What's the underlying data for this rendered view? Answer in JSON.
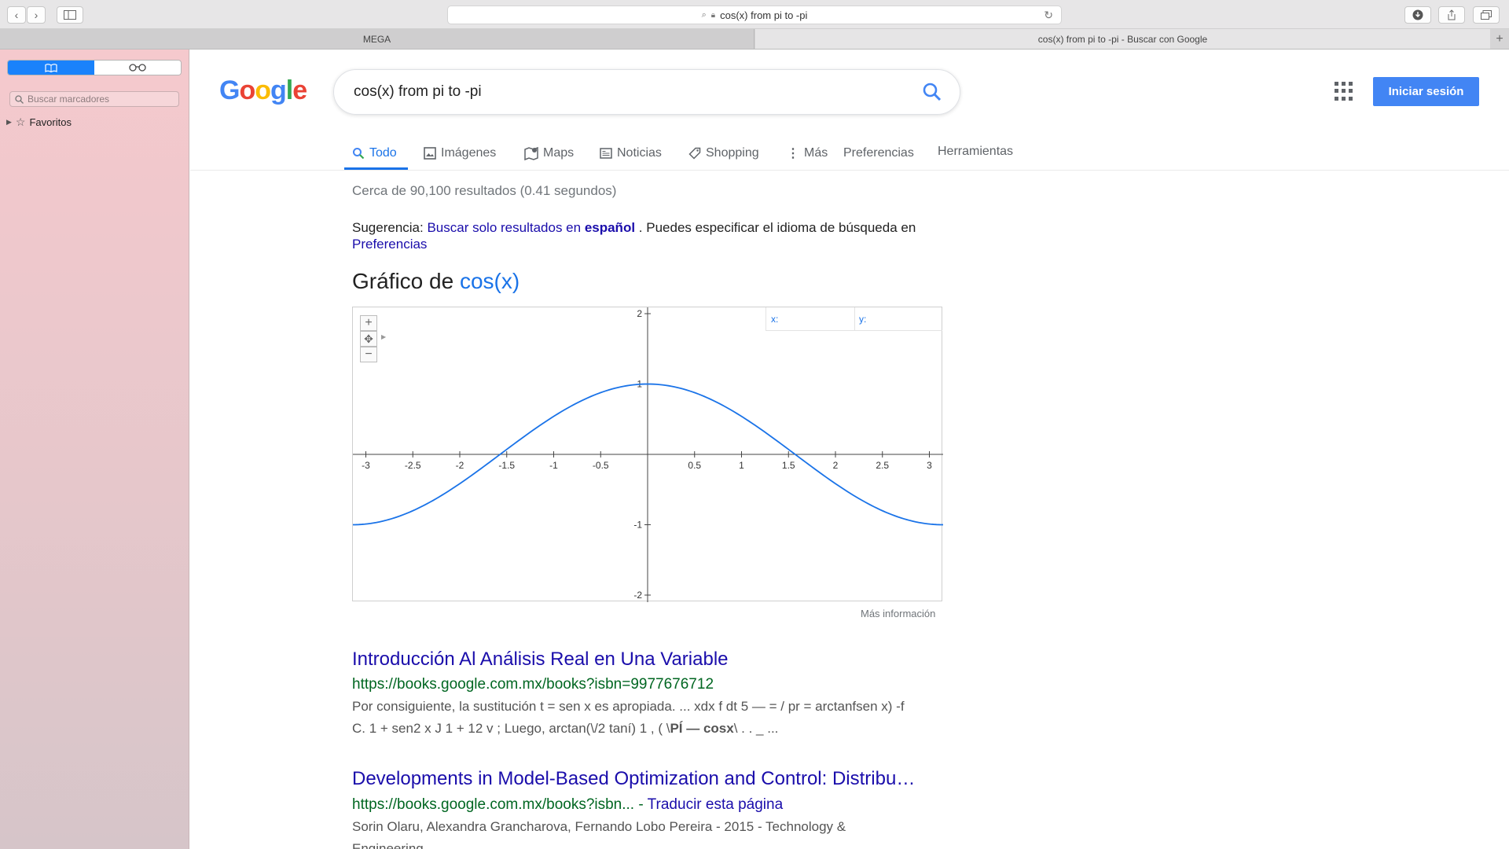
{
  "browser": {
    "url": "cos(x) from pi to -pi",
    "tabs": [
      {
        "label": "MEGA"
      },
      {
        "label": "cos(x) from pi to -pi - Buscar con Google"
      }
    ]
  },
  "sidebar": {
    "search_placeholder": "Buscar marcadores",
    "favorites_label": "Favoritos"
  },
  "google": {
    "logo_letters": [
      "G",
      "o",
      "o",
      "g",
      "l",
      "e"
    ],
    "search_query": "cos(x) from pi to -pi",
    "signin_label": "Iniciar sesión",
    "tabs": [
      "Todo",
      "Imágenes",
      "Maps",
      "Noticias",
      "Shopping",
      "Más",
      "Preferencias",
      "Herramientas"
    ],
    "stats": "Cerca de 90,100 resultados (0.41 segundos)",
    "suggestion": {
      "prefix": "Sugerencia:",
      "link_text": "Buscar solo resultados en",
      "link_bold": "español",
      "middle": ". Puedes especificar el idioma de búsqueda en",
      "pref_link": "Preferencias"
    },
    "graph_title_prefix": "Gráfico de",
    "graph_title_func": "cos(x)",
    "graph_readout": {
      "x_label": "x:",
      "y_label": "y:"
    },
    "more_info": "Más información",
    "results": [
      {
        "title": "Introducción Al Análisis Real en Una Variable",
        "url": "https://books.google.com.mx/books?isbn=9977676712",
        "translate": "",
        "snippet_1": "Por consiguiente, la sustitución t = sen x es apropiada. ... xdx f dt 5 — = / pr = arctanfsen x) -f",
        "snippet_2a": "C. 1 + sen2 x J 1 + 12 v ; Luego, arctan(\\/2 taní) 1 , ( \\",
        "snippet_2b": "PÍ — cosx",
        "snippet_2c": "\\ . . _ ..."
      },
      {
        "title": "Developments in Model-Based Optimization and Control: Distribu…",
        "url": "https://books.google.com.mx/books?isbn...",
        "translate": "Traducir esta página",
        "snippet_1": "Sorin Olaru, Alexandra Grancharova, Fernando Lobo Pereira - 2015 - Technology &",
        "snippet_2a": "Engineering",
        "snippet_2b": "",
        "snippet_2c": ""
      }
    ]
  },
  "chart_data": {
    "type": "line",
    "function": "cos(x)",
    "xlim": [
      -3.14159,
      3.14159
    ],
    "ylim": [
      -2,
      2
    ],
    "x_ticks": [
      -3,
      -2.5,
      -2,
      -1.5,
      -1,
      -0.5,
      0.5,
      1,
      1.5,
      2,
      2.5,
      3
    ],
    "y_ticks": [
      2,
      1,
      -1,
      -2
    ],
    "x_tick_labels": [
      "-3",
      "-2.5",
      "-2",
      "-1.5",
      "-1",
      "-0.5",
      "0.5",
      "1",
      "1.5",
      "2",
      "2.5",
      "3"
    ],
    "y_tick_labels": [
      "2",
      "1",
      "-1",
      "-2"
    ],
    "series": [
      {
        "color": "#1a73e8",
        "x": [
          -3.1416,
          -2.75,
          -2.36,
          -1.96,
          -1.57,
          -1.18,
          -0.79,
          -0.39,
          0,
          0.39,
          0.79,
          1.18,
          1.57,
          1.96,
          2.36,
          2.75,
          3.1416
        ],
        "y": [
          -1,
          -0.924,
          -0.707,
          -0.383,
          0,
          0.383,
          0.707,
          0.924,
          1,
          0.924,
          0.707,
          0.383,
          0,
          -0.383,
          -0.707,
          -0.924,
          -1
        ]
      }
    ]
  }
}
